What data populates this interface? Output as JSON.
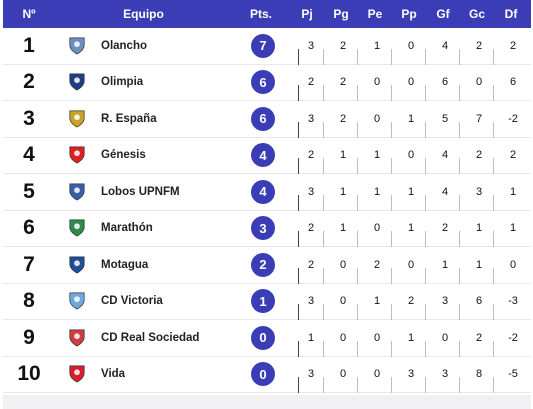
{
  "header": {
    "pos": "Nº",
    "team": "Equipo",
    "pts": "Pts.",
    "pj": "Pj",
    "pg": "Pg",
    "pe": "Pe",
    "pp": "Pp",
    "gf": "Gf",
    "gc": "Gc",
    "df": "Df"
  },
  "rows": [
    {
      "pos": "1",
      "team": "Olancho",
      "pts": "7",
      "pj": "3",
      "pg": "2",
      "pe": "1",
      "pp": "0",
      "gf": "4",
      "gc": "2",
      "df": "2",
      "crest_color": "#6a8fbf",
      "crest_icon": "olancho-crest-icon"
    },
    {
      "pos": "2",
      "team": "Olimpia",
      "pts": "6",
      "pj": "2",
      "pg": "2",
      "pe": "0",
      "pp": "0",
      "gf": "6",
      "gc": "0",
      "df": "6",
      "crest_color": "#1f3c88",
      "crest_icon": "olimpia-crest-icon"
    },
    {
      "pos": "3",
      "team": "R. España",
      "pts": "6",
      "pj": "3",
      "pg": "2",
      "pe": "0",
      "pp": "1",
      "gf": "5",
      "gc": "7",
      "df": "-2",
      "crest_color": "#c9a227",
      "crest_icon": "real-espana-crest-icon"
    },
    {
      "pos": "4",
      "team": "Génesis",
      "pts": "4",
      "pj": "2",
      "pg": "1",
      "pe": "1",
      "pp": "0",
      "gf": "4",
      "gc": "2",
      "df": "2",
      "crest_color": "#e02020",
      "crest_icon": "genesis-crest-icon"
    },
    {
      "pos": "5",
      "team": "Lobos UPNFM",
      "pts": "4",
      "pj": "3",
      "pg": "1",
      "pe": "1",
      "pp": "1",
      "gf": "4",
      "gc": "3",
      "df": "1",
      "crest_color": "#3a5da8",
      "crest_icon": "lobos-crest-icon"
    },
    {
      "pos": "6",
      "team": "Marathón",
      "pts": "3",
      "pj": "2",
      "pg": "1",
      "pe": "0",
      "pp": "1",
      "gf": "2",
      "gc": "1",
      "df": "1",
      "crest_color": "#2e8b4a",
      "crest_icon": "marathon-crest-icon"
    },
    {
      "pos": "7",
      "team": "Motagua",
      "pts": "2",
      "pj": "2",
      "pg": "0",
      "pe": "2",
      "pp": "0",
      "gf": "1",
      "gc": "1",
      "df": "0",
      "crest_color": "#1e4f9a",
      "crest_icon": "motagua-crest-icon"
    },
    {
      "pos": "8",
      "team": "CD Victoria",
      "pts": "1",
      "pj": "3",
      "pg": "0",
      "pe": "1",
      "pp": "2",
      "gf": "3",
      "gc": "6",
      "df": "-3",
      "crest_color": "#6fa8dc",
      "crest_icon": "victoria-crest-icon"
    },
    {
      "pos": "9",
      "team": "CD Real Sociedad",
      "pts": "0",
      "pj": "1",
      "pg": "0",
      "pe": "0",
      "pp": "1",
      "gf": "0",
      "gc": "2",
      "df": "-2",
      "crest_color": "#d23c3c",
      "crest_icon": "real-sociedad-crest-icon"
    },
    {
      "pos": "10",
      "team": "Vida",
      "pts": "0",
      "pj": "3",
      "pg": "0",
      "pe": "0",
      "pp": "3",
      "gf": "3",
      "gc": "8",
      "df": "-5",
      "crest_color": "#d81e2c",
      "crest_icon": "vida-crest-icon"
    }
  ],
  "colors": {
    "header_bg": "#3a3db5",
    "badge_bg": "#3a3db5",
    "footer_bg": "#f1f1f4"
  }
}
